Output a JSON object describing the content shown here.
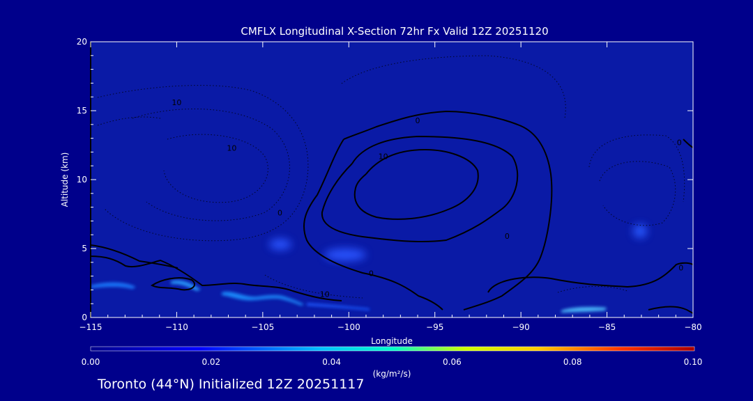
{
  "chart_data": {
    "type": "heatmap",
    "title": "CMFLX Longitudinal X-Section 72hr  Fx Valid 12Z 20251120",
    "xlabel": "Longitude",
    "ylabel": "Altitude (km)",
    "xlim": [
      -115,
      -80
    ],
    "ylim": [
      0,
      20
    ],
    "x_ticks": [
      -115,
      -110,
      -105,
      -100,
      -95,
      -90,
      -85,
      -80
    ],
    "x_tick_labels": [
      "−115",
      "−110",
      "−105",
      "−100",
      "−95",
      "−90",
      "−85",
      "−80"
    ],
    "y_ticks": [
      0,
      5,
      10,
      15,
      20
    ],
    "y_tick_labels": [
      "0",
      "5",
      "10",
      "15",
      "20"
    ],
    "colorbar": {
      "label": "(kg/m²/s)",
      "range": [
        0.0,
        0.1
      ],
      "ticks": [
        "0.00",
        "0.02",
        "0.04",
        "0.06",
        "0.08",
        "0.10"
      ],
      "colors": [
        "#00008b",
        "#0000ff",
        "#00ccff",
        "#00ffcc",
        "#ccff00",
        "#ffcc00",
        "#ff3300",
        "#cc0000"
      ]
    },
    "shaded_features": [
      {
        "lon": -113.8,
        "alt": 2.3,
        "value": 0.03
      },
      {
        "lon": -110.0,
        "alt": 2.5,
        "value": 0.03
      },
      {
        "lon": -104.0,
        "alt": 1.5,
        "value": 0.035
      },
      {
        "lon": -101.0,
        "alt": 0.8,
        "value": 0.015
      },
      {
        "lon": -103.9,
        "alt": 5.3,
        "value": 0.01
      },
      {
        "lon": -99.8,
        "alt": 4.5,
        "value": 0.01
      },
      {
        "lon": -86.8,
        "alt": 0.5,
        "value": 0.035
      },
      {
        "lon": -83.0,
        "alt": 6.4,
        "value": 0.012
      }
    ],
    "contour_labels": [
      {
        "text": "10",
        "lon": -110.0,
        "alt": 15.6
      },
      {
        "text": "10",
        "lon": -106.8,
        "alt": 12.3
      },
      {
        "text": "0",
        "lon": -104.0,
        "alt": 7.6
      },
      {
        "text": "0",
        "lon": -96.0,
        "alt": 14.3
      },
      {
        "text": "10",
        "lon": -98.0,
        "alt": 11.7
      },
      {
        "text": "0",
        "lon": -98.7,
        "alt": 3.2
      },
      {
        "text": "10",
        "lon": -101.4,
        "alt": 1.7
      },
      {
        "text": "0",
        "lon": -90.8,
        "alt": 5.9
      },
      {
        "text": "0",
        "lon": -80.7,
        "alt": 3.6
      },
      {
        "text": "0",
        "lon": -80.8,
        "alt": 12.7
      }
    ]
  },
  "footer": {
    "text": "Toronto (44°N) Initialized 12Z 20251117"
  }
}
